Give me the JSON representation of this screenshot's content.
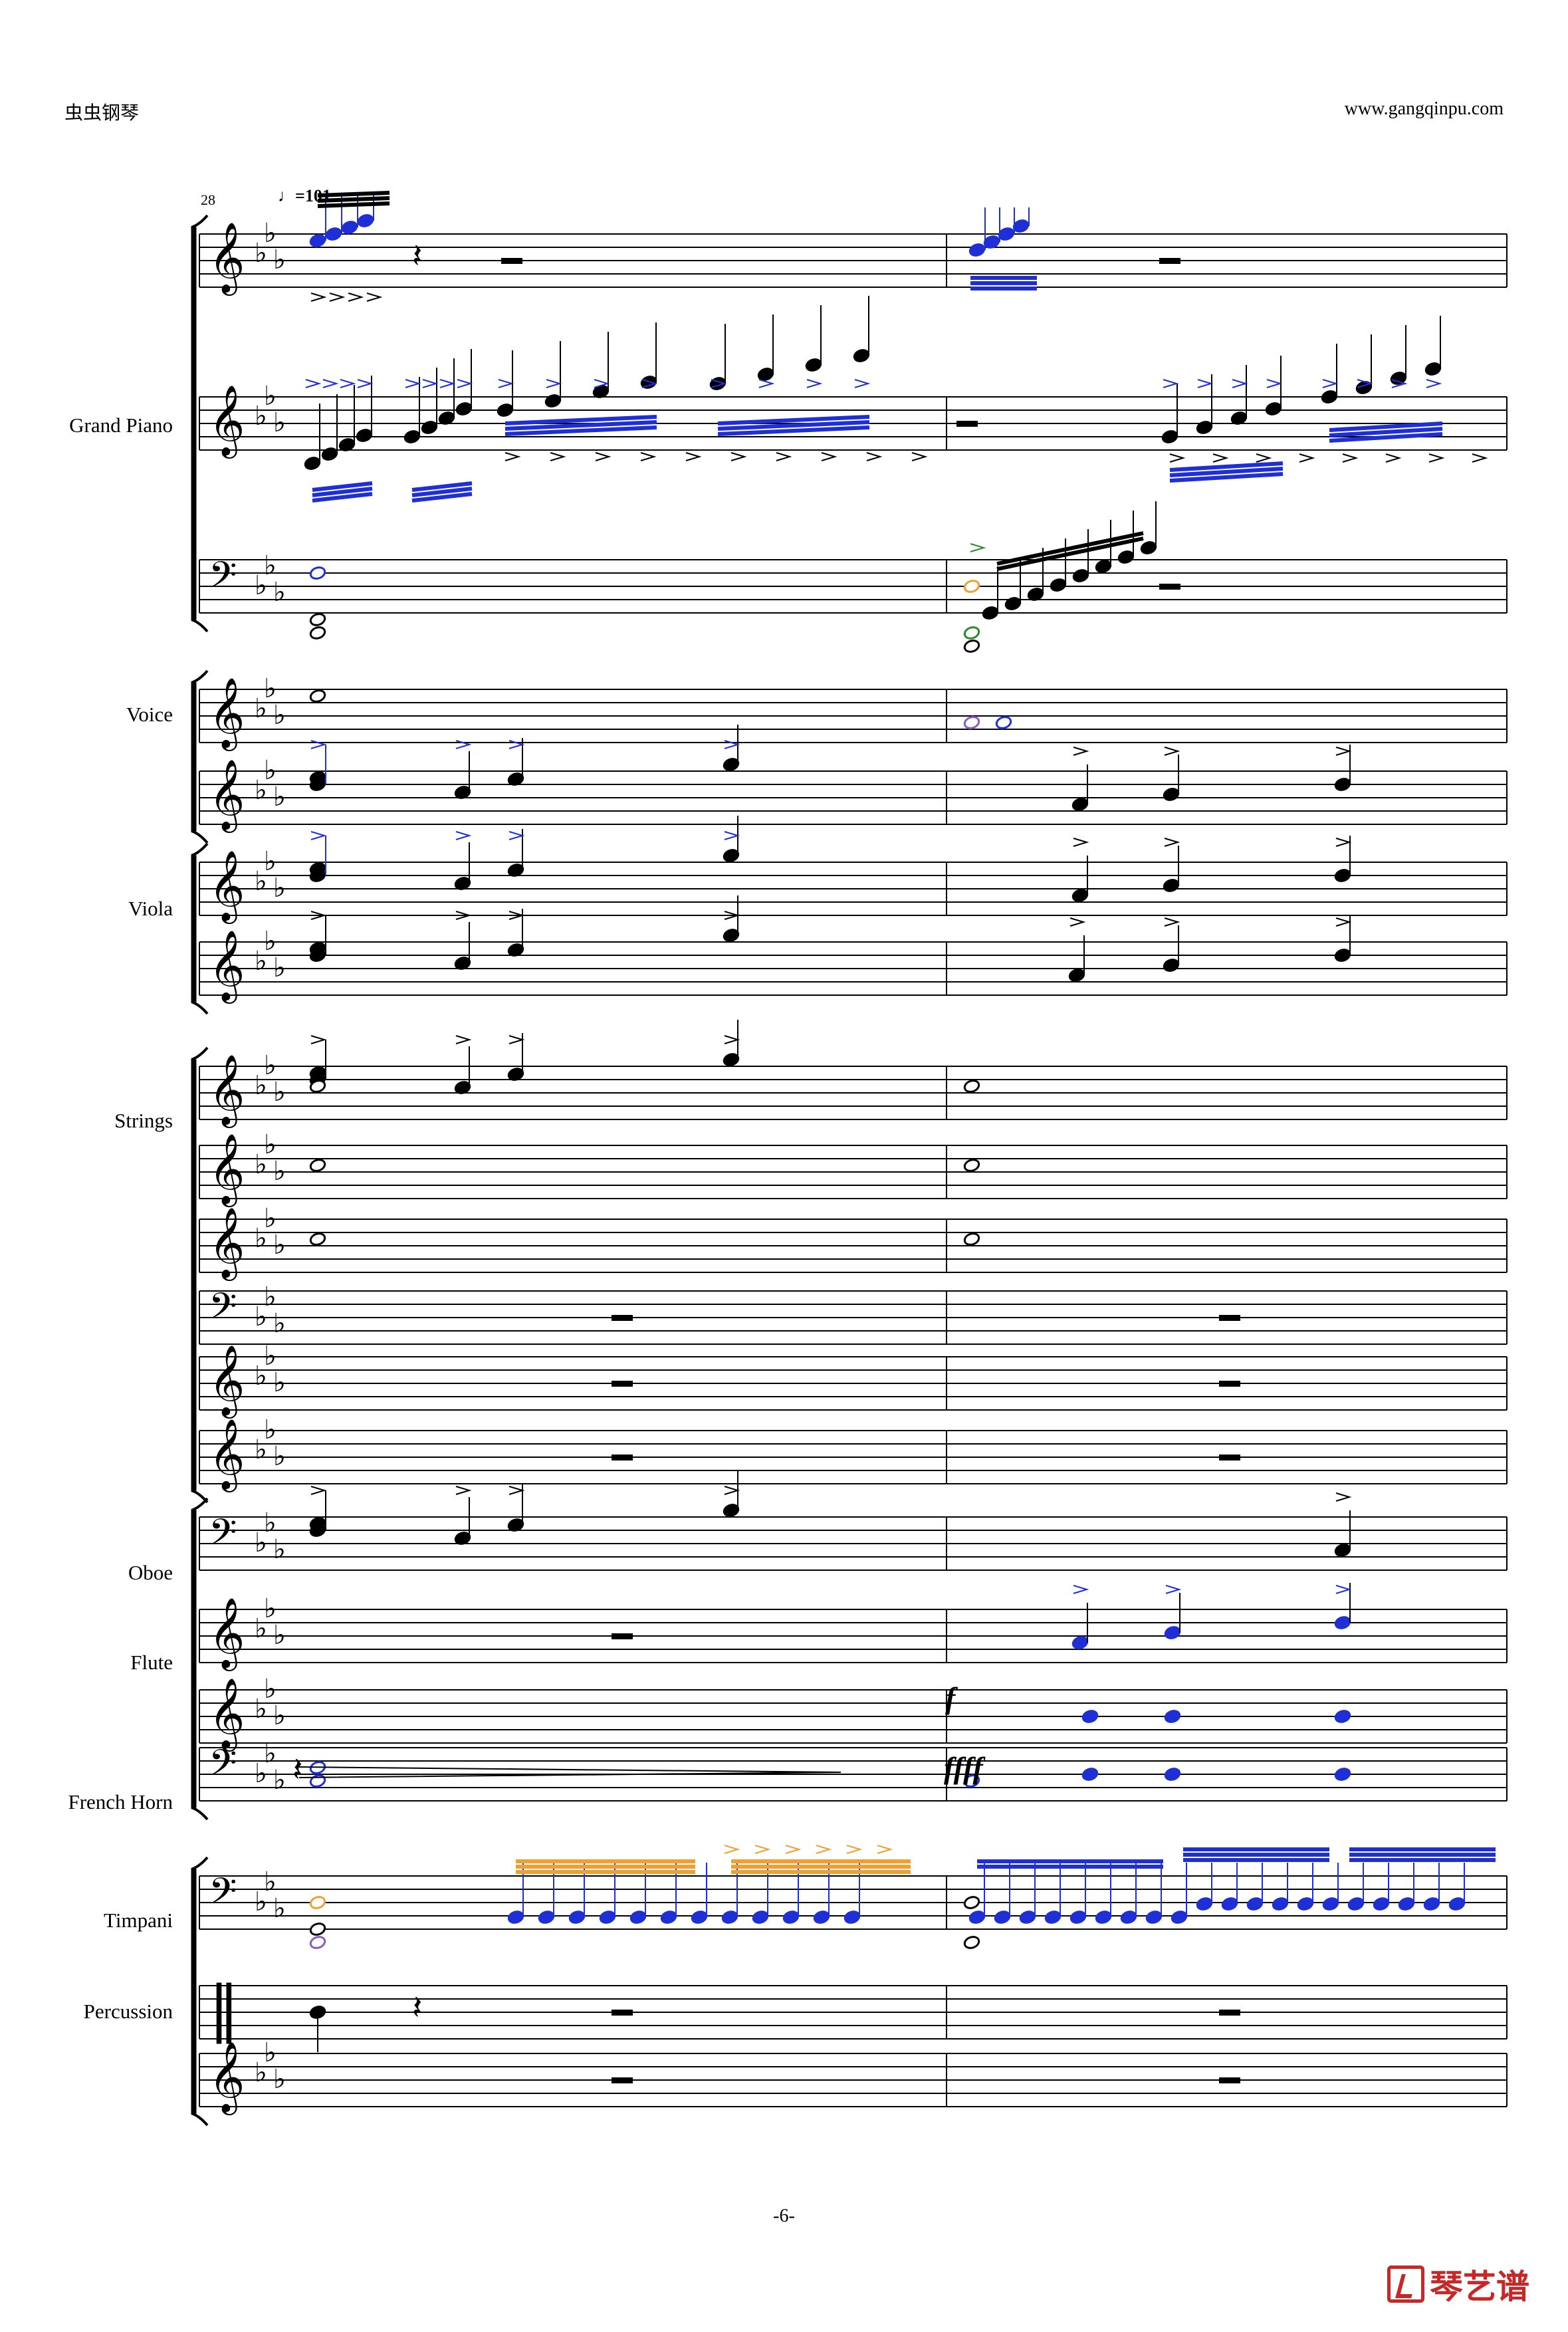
{
  "header": {
    "left": "虫虫钢琴",
    "right": "www.gangqinpu.com"
  },
  "measure_number": "28",
  "tempo_marking": "♩=101",
  "instruments": [
    {
      "id": "grand-piano",
      "label": "Grand Piano"
    },
    {
      "id": "voice",
      "label": "Voice"
    },
    {
      "id": "viola",
      "label": "Viola"
    },
    {
      "id": "strings",
      "label": "Strings"
    },
    {
      "id": "oboe",
      "label": "Oboe"
    },
    {
      "id": "flute",
      "label": "Flute"
    },
    {
      "id": "french-horn",
      "label": "French Horn"
    },
    {
      "id": "timpani",
      "label": "Timpani"
    },
    {
      "id": "percussion",
      "label": "Percussion"
    }
  ],
  "dynamics": {
    "f": "f",
    "ffff": "ffff"
  },
  "footer": {
    "page_number": "-6-"
  },
  "logo": {
    "text": "琴艺谱"
  },
  "colors": {
    "ink": "#000000",
    "blue": "#1f2fd6",
    "orange": "#f0a030",
    "green": "#2a8a2a",
    "purple": "#8a5cc0",
    "logo": "#c62828"
  }
}
